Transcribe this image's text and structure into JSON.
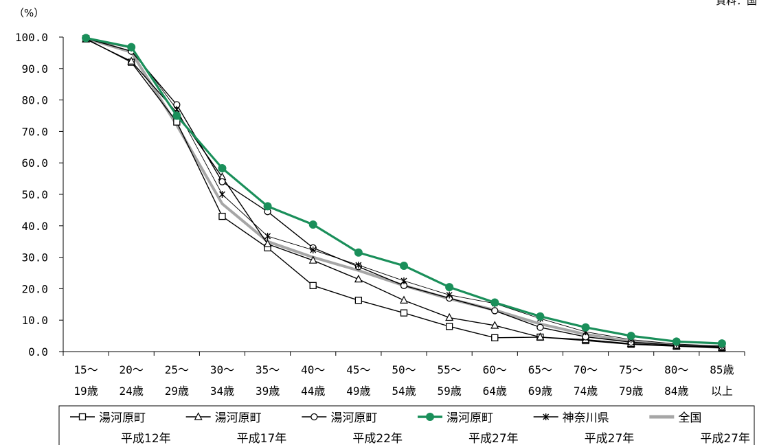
{
  "chart_data": {
    "type": "line",
    "y_unit": "（%）",
    "top_right_text": "資料：国",
    "ylim": [
      0,
      100
    ],
    "y_ticks": [
      "100.0",
      "90.0",
      "80.0",
      "70.0",
      "60.0",
      "50.0",
      "40.0",
      "30.0",
      "20.0",
      "10.0",
      "0.0"
    ],
    "y_tick_values": [
      100,
      90,
      80,
      70,
      60,
      50,
      40,
      30,
      20,
      10,
      0
    ],
    "categories": [
      [
        "15～",
        "19歳"
      ],
      [
        "20～",
        "24歳"
      ],
      [
        "25～",
        "29歳"
      ],
      [
        "30～",
        "34歳"
      ],
      [
        "35～",
        "39歳"
      ],
      [
        "40～",
        "44歳"
      ],
      [
        "45～",
        "49歳"
      ],
      [
        "50～",
        "54歳"
      ],
      [
        "55～",
        "59歳"
      ],
      [
        "60～",
        "64歳"
      ],
      [
        "65～",
        "69歳"
      ],
      [
        "70～",
        "74歳"
      ],
      [
        "75～",
        "79歳"
      ],
      [
        "80～",
        "84歳"
      ],
      [
        "85歳",
        "以上"
      ]
    ],
    "grid": false,
    "legend_position": "bottom",
    "series": [
      {
        "name": [
          "湯河原町",
          "平成12年"
        ],
        "marker": "square",
        "color": "#000000",
        "values": [
          99.5,
          92.0,
          73.0,
          43.0,
          33.0,
          21.0,
          16.3,
          12.3,
          8.0,
          4.4,
          4.6,
          3.5,
          2.3,
          1.7,
          1.2
        ]
      },
      {
        "name": [
          "湯河原町",
          "平成17年"
        ],
        "marker": "triangle",
        "color": "#000000",
        "values": [
          99.3,
          92.3,
          76.0,
          55.5,
          34.2,
          29.0,
          23.0,
          16.3,
          10.8,
          8.3,
          4.6,
          3.8,
          2.5,
          1.8,
          1.3
        ]
      },
      {
        "name": [
          "湯河原町",
          "平成22年"
        ],
        "marker": "circle",
        "color": "#000000",
        "values": [
          99.6,
          95.5,
          78.5,
          54.0,
          44.5,
          33.0,
          27.0,
          21.0,
          17.0,
          13.0,
          7.7,
          4.7,
          3.0,
          2.0,
          1.5
        ]
      },
      {
        "name": [
          "湯河原町",
          "平成27年"
        ],
        "marker": "circle-filled",
        "color": "#1a8f5a",
        "values": [
          99.7,
          96.8,
          75.0,
          58.3,
          46.2,
          40.4,
          31.5,
          27.3,
          20.5,
          15.6,
          11.2,
          7.7,
          5.0,
          3.2,
          2.6
        ]
      },
      {
        "name": [
          "神奈川県",
          "平成27年"
        ],
        "marker": "star",
        "color": "#000000",
        "values": [
          99.4,
          96.5,
          77.0,
          50.0,
          36.7,
          32.3,
          27.5,
          22.5,
          18.0,
          15.3,
          10.5,
          6.3,
          3.8,
          2.4,
          1.8
        ]
      },
      {
        "name": [
          "全国",
          "平成27年"
        ],
        "marker": "none",
        "color": "#a6a6a6",
        "values": [
          99.6,
          95.2,
          72.0,
          47.0,
          35.0,
          30.0,
          25.8,
          21.0,
          16.8,
          13.2,
          8.8,
          5.5,
          3.2,
          2.0,
          1.3
        ]
      }
    ]
  }
}
